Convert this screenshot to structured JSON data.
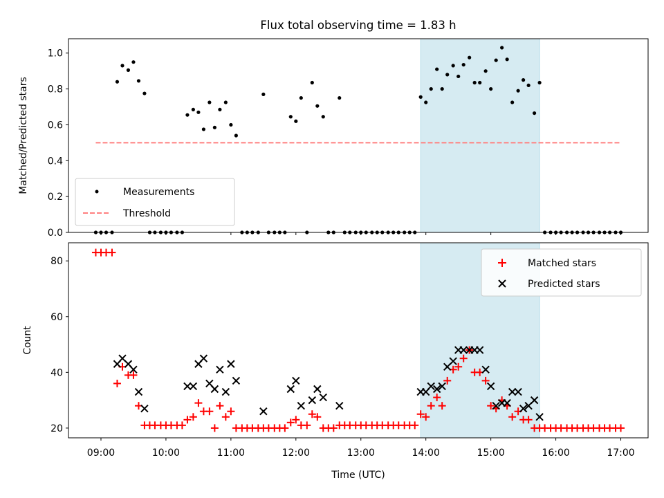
{
  "chart_data": [
    {
      "type": "scatter",
      "title": "Flux total observing time = 1.83 h",
      "xlabel": "",
      "ylabel": "Matched/Predicted stars",
      "xlim": [
        8.5,
        17.42
      ],
      "ylim": [
        0.0,
        1.08
      ],
      "yticks": [
        0.0,
        0.2,
        0.4,
        0.6,
        0.8,
        1.0
      ],
      "ytick_labels": [
        "0.0",
        "0.2",
        "0.4",
        "0.6",
        "0.8",
        "1.0"
      ],
      "highlight_span": {
        "x": [
          13.92,
          15.75
        ],
        "color": "#add8e6"
      },
      "threshold": {
        "name": "Threshold",
        "y": 0.5,
        "x": [
          8.92,
          17.0
        ],
        "color": "#ff7f7f"
      },
      "legend": {
        "location": "lower-left",
        "entries": [
          "Measurements",
          "Threshold"
        ]
      },
      "series": [
        {
          "name": "Measurements",
          "color": "#000000",
          "x": [
            8.92,
            9.0,
            9.08,
            9.17,
            9.25,
            9.33,
            9.42,
            9.5,
            9.58,
            9.67,
            9.75,
            9.83,
            9.92,
            10.0,
            10.08,
            10.17,
            10.25,
            10.33,
            10.42,
            10.5,
            10.58,
            10.67,
            10.75,
            10.83,
            10.92,
            11.0,
            11.08,
            11.17,
            11.25,
            11.33,
            11.42,
            11.5,
            11.58,
            11.67,
            11.75,
            11.83,
            11.92,
            12.0,
            12.08,
            12.17,
            12.25,
            12.33,
            12.42,
            12.5,
            12.58,
            12.67,
            12.75,
            12.83,
            12.92,
            13.0,
            13.08,
            13.17,
            13.25,
            13.33,
            13.42,
            13.5,
            13.58,
            13.67,
            13.75,
            13.83,
            13.92,
            14.0,
            14.08,
            14.17,
            14.25,
            14.33,
            14.42,
            14.5,
            14.58,
            14.67,
            14.75,
            14.83,
            14.92,
            15.0,
            15.08,
            15.17,
            15.25,
            15.33,
            15.42,
            15.5,
            15.58,
            15.67,
            15.75,
            15.83,
            15.92,
            16.0,
            16.08,
            16.17,
            16.25,
            16.33,
            16.42,
            16.5,
            16.58,
            16.67,
            16.75,
            16.83,
            16.92,
            17.0
          ],
          "y": [
            0.0,
            0.0,
            0.0,
            0.0,
            0.84,
            0.93,
            0.905,
            0.95,
            0.845,
            0.775,
            0.0,
            0.0,
            0.0,
            0.0,
            0.0,
            0.0,
            0.0,
            0.655,
            0.685,
            0.67,
            0.575,
            0.725,
            0.585,
            0.685,
            0.725,
            0.6,
            0.54,
            0.0,
            0.0,
            0.0,
            0.0,
            0.77,
            0.0,
            0.0,
            0.0,
            0.0,
            0.645,
            0.62,
            0.75,
            0.0,
            0.835,
            0.705,
            0.645,
            0.0,
            0.0,
            0.75,
            0.0,
            0.0,
            0.0,
            0.0,
            0.0,
            0.0,
            0.0,
            0.0,
            0.0,
            0.0,
            0.0,
            0.0,
            0.0,
            0.0,
            0.755,
            0.725,
            0.8,
            0.91,
            0.8,
            0.88,
            0.93,
            0.87,
            0.935,
            0.975,
            0.835,
            0.835,
            0.9,
            0.8,
            0.96,
            1.03,
            0.965,
            0.725,
            0.79,
            0.85,
            0.82,
            0.665,
            0.835,
            0.0,
            0.0,
            0.0,
            0.0,
            0.0,
            0.0,
            0.0,
            0.0,
            0.0,
            0.0,
            0.0,
            0.0,
            0.0,
            0.0,
            0.0
          ]
        }
      ]
    },
    {
      "type": "scatter",
      "title": "",
      "xlabel": "Time (UTC)",
      "ylabel": "Count",
      "xlim": [
        8.5,
        17.42
      ],
      "ylim": [
        16.5,
        86.5
      ],
      "yticks": [
        20,
        40,
        60,
        80
      ],
      "ytick_labels": [
        "20",
        "40",
        "60",
        "80"
      ],
      "xticks": [
        9,
        10,
        11,
        12,
        13,
        14,
        15,
        16,
        17
      ],
      "xtick_labels": [
        "09:00",
        "10:00",
        "11:00",
        "12:00",
        "13:00",
        "14:00",
        "15:00",
        "16:00",
        "17:00"
      ],
      "highlight_span": {
        "x": [
          13.92,
          15.75
        ],
        "color": "#add8e6"
      },
      "legend": {
        "location": "top-right",
        "entries": [
          "Matched stars",
          "Predicted stars"
        ]
      },
      "series": [
        {
          "name": "Matched stars",
          "marker": "+",
          "color": "#ff0000",
          "x": [
            8.92,
            9.0,
            9.08,
            9.17,
            9.25,
            9.33,
            9.42,
            9.5,
            9.58,
            9.67,
            9.75,
            9.83,
            9.92,
            10.0,
            10.08,
            10.17,
            10.25,
            10.33,
            10.42,
            10.5,
            10.58,
            10.67,
            10.75,
            10.83,
            10.92,
            11.0,
            11.08,
            11.17,
            11.25,
            11.33,
            11.42,
            11.5,
            11.58,
            11.67,
            11.75,
            11.83,
            11.92,
            12.0,
            12.08,
            12.17,
            12.25,
            12.33,
            12.42,
            12.5,
            12.58,
            12.67,
            12.75,
            12.83,
            12.92,
            13.0,
            13.08,
            13.17,
            13.25,
            13.33,
            13.42,
            13.5,
            13.58,
            13.67,
            13.75,
            13.83,
            13.92,
            14.0,
            14.08,
            14.17,
            14.25,
            14.33,
            14.42,
            14.5,
            14.58,
            14.67,
            14.75,
            14.83,
            14.92,
            15.0,
            15.08,
            15.17,
            15.25,
            15.33,
            15.42,
            15.5,
            15.58,
            15.67,
            15.75,
            15.83,
            15.92,
            16.0,
            16.08,
            16.17,
            16.25,
            16.33,
            16.42,
            16.5,
            16.58,
            16.67,
            16.75,
            16.83,
            16.92,
            17.0
          ],
          "y": [
            83,
            83,
            83,
            83,
            36,
            42,
            39,
            39,
            28,
            21,
            21,
            21,
            21,
            21,
            21,
            21,
            21,
            23,
            24,
            29,
            26,
            26,
            20,
            28,
            24,
            26,
            20,
            20,
            20,
            20,
            20,
            20,
            20,
            20,
            20,
            20,
            22,
            23,
            21,
            21,
            25,
            24,
            20,
            20,
            20,
            21,
            21,
            21,
            21,
            21,
            21,
            21,
            21,
            21,
            21,
            21,
            21,
            21,
            21,
            21,
            25,
            24,
            28,
            31,
            28,
            37,
            41,
            42,
            45,
            48,
            40,
            40,
            37,
            28,
            27,
            30,
            28,
            24,
            26,
            23,
            23,
            20,
            20,
            20,
            20,
            20,
            20,
            20,
            20,
            20,
            20,
            20,
            20,
            20,
            20,
            20,
            20,
            20
          ]
        },
        {
          "name": "Predicted stars",
          "marker": "x",
          "color": "#000000",
          "x": [
            9.25,
            9.33,
            9.42,
            9.5,
            9.58,
            9.67,
            10.33,
            10.42,
            10.5,
            10.58,
            10.67,
            10.75,
            10.83,
            10.92,
            11.0,
            11.08,
            11.5,
            11.92,
            12.0,
            12.08,
            12.25,
            12.33,
            12.42,
            12.67,
            13.92,
            14.0,
            14.08,
            14.17,
            14.25,
            14.33,
            14.42,
            14.5,
            14.58,
            14.67,
            14.75,
            14.83,
            14.92,
            15.0,
            15.08,
            15.17,
            15.25,
            15.33,
            15.42,
            15.5,
            15.58,
            15.67,
            15.75
          ],
          "y": [
            43,
            45,
            43,
            41,
            33,
            27,
            35,
            35,
            43,
            45,
            36,
            34,
            41,
            33,
            43,
            37,
            26,
            34,
            37,
            28,
            30,
            34,
            31,
            28,
            33,
            33,
            35,
            34,
            35,
            42,
            44,
            48,
            48,
            48,
            48,
            48,
            41,
            35,
            28,
            29,
            29,
            33,
            33,
            27,
            28,
            30,
            24
          ]
        }
      ]
    }
  ]
}
